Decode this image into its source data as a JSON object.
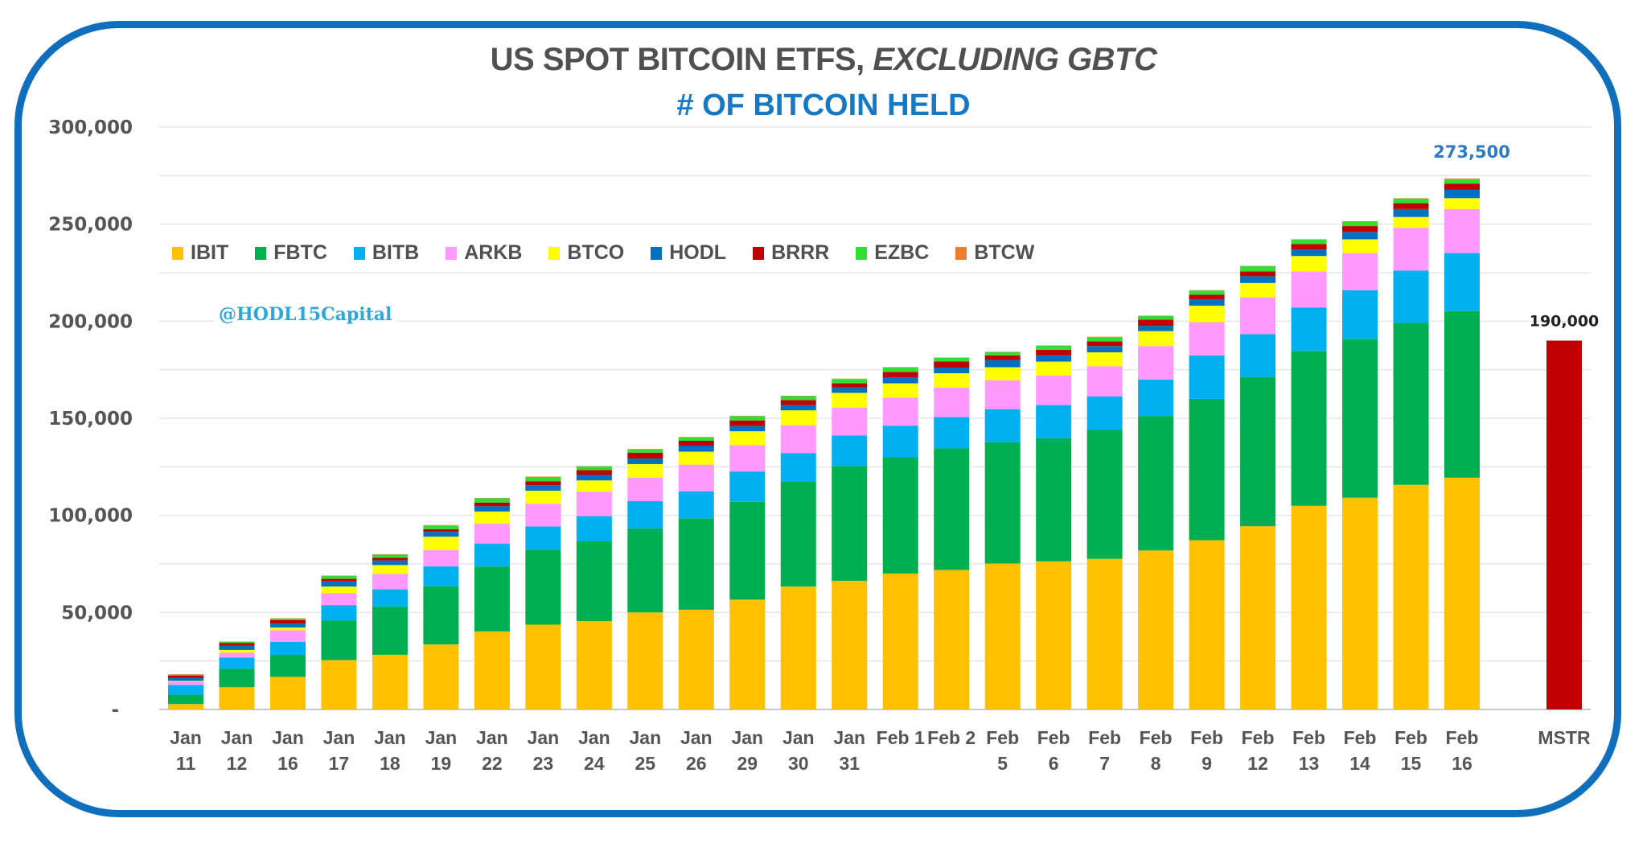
{
  "header": {
    "title_main": "US SPOT BITCOIN ETFS, ",
    "title_italic": "EXCLUDING GBTC",
    "subtitle": "# OF BITCOIN HELD"
  },
  "watermark": "@HODL15Capital",
  "chart_data": {
    "type": "bar",
    "stacked": true,
    "title": "US SPOT BITCOIN ETFS, EXCLUDING GBTC",
    "subtitle": "# OF BITCOIN HELD",
    "xlabel": "",
    "ylabel": "",
    "ylim": [
      0,
      300000
    ],
    "yticks": [
      0,
      50000,
      100000,
      150000,
      200000,
      250000,
      300000
    ],
    "ytick_labels": [
      "-",
      "50,000",
      "100,000",
      "150,000",
      "200,000",
      "250,000",
      "300,000"
    ],
    "minor_gridline_step": 25000,
    "grid": true,
    "legend_position": "top-left",
    "categories": [
      [
        "Jan",
        "11"
      ],
      [
        "Jan",
        "12"
      ],
      [
        "Jan",
        "16"
      ],
      [
        "Jan",
        "17"
      ],
      [
        "Jan",
        "18"
      ],
      [
        "Jan",
        "19"
      ],
      [
        "Jan",
        "22"
      ],
      [
        "Jan",
        "23"
      ],
      [
        "Jan",
        "24"
      ],
      [
        "Jan",
        "25"
      ],
      [
        "Jan",
        "26"
      ],
      [
        "Jan",
        "29"
      ],
      [
        "Jan",
        "30"
      ],
      [
        "Jan",
        "31"
      ],
      [
        "Feb 1",
        ""
      ],
      [
        "Feb 2",
        ""
      ],
      [
        "Feb",
        "5"
      ],
      [
        "Feb",
        "6"
      ],
      [
        "Feb",
        "7"
      ],
      [
        "Feb",
        "8"
      ],
      [
        "Feb",
        "9"
      ],
      [
        "Feb",
        "12"
      ],
      [
        "Feb",
        "13"
      ],
      [
        "Feb",
        "14"
      ],
      [
        "Feb",
        "15"
      ],
      [
        "Feb",
        "16"
      ]
    ],
    "series": [
      {
        "name": "IBIT",
        "color": "#ffc000",
        "values": [
          2800,
          11500,
          16800,
          25400,
          28200,
          33500,
          40200,
          43700,
          45500,
          50000,
          51400,
          56600,
          63300,
          66300,
          70000,
          71900,
          75200,
          76300,
          77600,
          81900,
          87200,
          94400,
          104900,
          109100,
          115700,
          119400
        ]
      },
      {
        "name": "FBTC",
        "color": "#00b050",
        "values": [
          4900,
          9500,
          11400,
          20400,
          24800,
          30000,
          33400,
          38600,
          41100,
          43300,
          47100,
          50400,
          54000,
          59100,
          59900,
          62600,
          62400,
          63400,
          66400,
          69300,
          72800,
          76800,
          79800,
          81800,
          83400,
          85800
        ]
      },
      {
        "name": "BITB",
        "color": "#00b0f0",
        "values": [
          4900,
          5800,
          6700,
          8000,
          8900,
          10200,
          11900,
          12000,
          13000,
          14000,
          13900,
          15600,
          14800,
          15700,
          16300,
          16100,
          17100,
          17100,
          17300,
          18700,
          22400,
          22100,
          22400,
          25100,
          27000,
          29900
        ]
      },
      {
        "name": "ARKB",
        "color": "#ff99ff",
        "values": [
          1600,
          2500,
          5900,
          6200,
          7900,
          8400,
          10200,
          11700,
          12600,
          12100,
          13700,
          13600,
          14300,
          14300,
          14400,
          15200,
          14900,
          15200,
          15500,
          17300,
          17100,
          19000,
          18600,
          19100,
          22000,
          22700
        ]
      },
      {
        "name": "BTCO",
        "color": "#ffff00",
        "values": [
          500,
          1400,
          1400,
          3300,
          4600,
          6900,
          6300,
          6700,
          5800,
          7000,
          6700,
          7100,
          7700,
          7700,
          7400,
          7400,
          6700,
          7200,
          7200,
          7700,
          8500,
          7400,
          7900,
          7100,
          5600,
          5600
        ]
      },
      {
        "name": "HODL",
        "color": "#0070c0",
        "values": [
          1500,
          2100,
          2100,
          2700,
          2400,
          2500,
          2700,
          2800,
          2800,
          2900,
          3100,
          2800,
          2700,
          2800,
          3100,
          2900,
          3700,
          3200,
          3200,
          2700,
          3200,
          3500,
          3300,
          3800,
          4100,
          4300
        ]
      },
      {
        "name": "BRRR",
        "color": "#c00000",
        "values": [
          1200,
          1400,
          1800,
          1300,
          1400,
          1400,
          1900,
          2100,
          2500,
          3000,
          2500,
          2800,
          2600,
          2100,
          2800,
          3100,
          2400,
          2900,
          2400,
          3200,
          2400,
          2400,
          2800,
          3000,
          3000,
          3200
        ]
      },
      {
        "name": "EZBC",
        "color": "#33dd33",
        "values": [
          500,
          600,
          700,
          1500,
          1600,
          1900,
          2200,
          2200,
          1900,
          1700,
          1800,
          2200,
          2000,
          2200,
          2300,
          1900,
          1700,
          2000,
          2200,
          1900,
          2200,
          2700,
          2300,
          2300,
          2400,
          2100
        ]
      },
      {
        "name": "BTCW",
        "color": "#ed7d31",
        "values": [
          300,
          200,
          200,
          200,
          200,
          200,
          200,
          200,
          200,
          200,
          200,
          200,
          200,
          200,
          200,
          200,
          200,
          200,
          200,
          200,
          200,
          200,
          200,
          200,
          200,
          500
        ]
      }
    ],
    "annotations": [
      {
        "category": "Feb 16",
        "label": "273,500",
        "value": 273500
      }
    ],
    "comparison_bar": {
      "category": "MSTR",
      "value": 190000,
      "label": "190,000",
      "color": "#c00000"
    }
  }
}
